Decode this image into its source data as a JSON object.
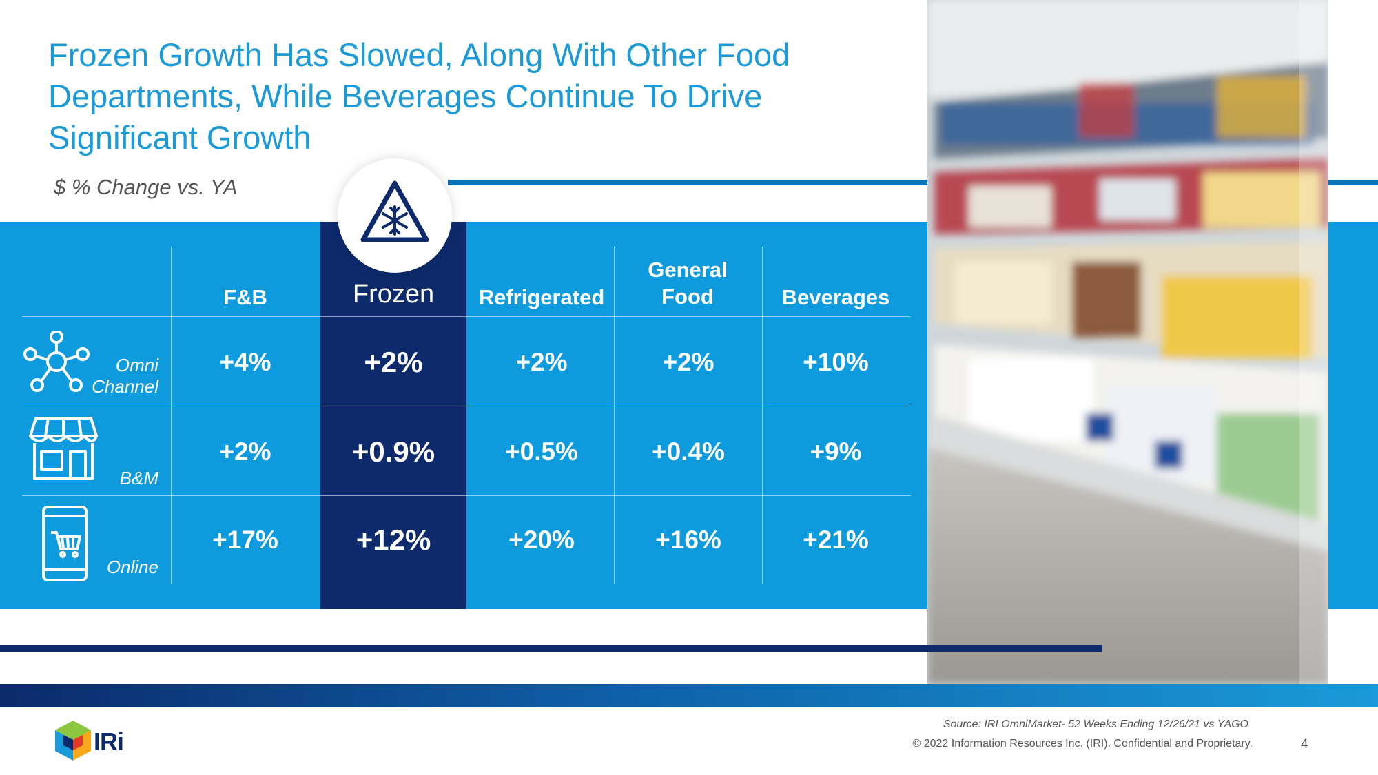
{
  "title": "Frozen Growth Has Slowed, Along With Other Food Departments, While Beverages Continue To Drive Significant Growth",
  "subtitle": "$ % Change vs. YA",
  "colors": {
    "accent": "#1a9ad8",
    "band": "#0e9bde",
    "dark": "#0c2a6c"
  },
  "chart_data": {
    "type": "table",
    "title": "$ % Change vs. YA",
    "columns": [
      "F&B",
      "Frozen",
      "Refrigerated",
      "General Food",
      "Beverages"
    ],
    "highlighted_column": "Frozen",
    "rows": [
      {
        "label": "Omni Channel",
        "icon": "network-icon",
        "values": [
          "+4%",
          "+2%",
          "+2%",
          "+2%",
          "+10%"
        ]
      },
      {
        "label": "B&M",
        "icon": "storefront-icon",
        "values": [
          "+2%",
          "+0.9%",
          "+0.5%",
          "+0.4%",
          "+9%"
        ]
      },
      {
        "label": "Online",
        "icon": "mobile-cart-icon",
        "values": [
          "+17%",
          "+12%",
          "+20%",
          "+16%",
          "+21%"
        ]
      }
    ]
  },
  "footer": {
    "source": "Source: IRI OmniMarket-  52 Weeks Ending 12/26/21 vs YAGO",
    "copyright": "© 2022 Information Resources Inc. (IRI). Confidential and Proprietary.",
    "page_number": "4",
    "logo_text": "IRi"
  }
}
